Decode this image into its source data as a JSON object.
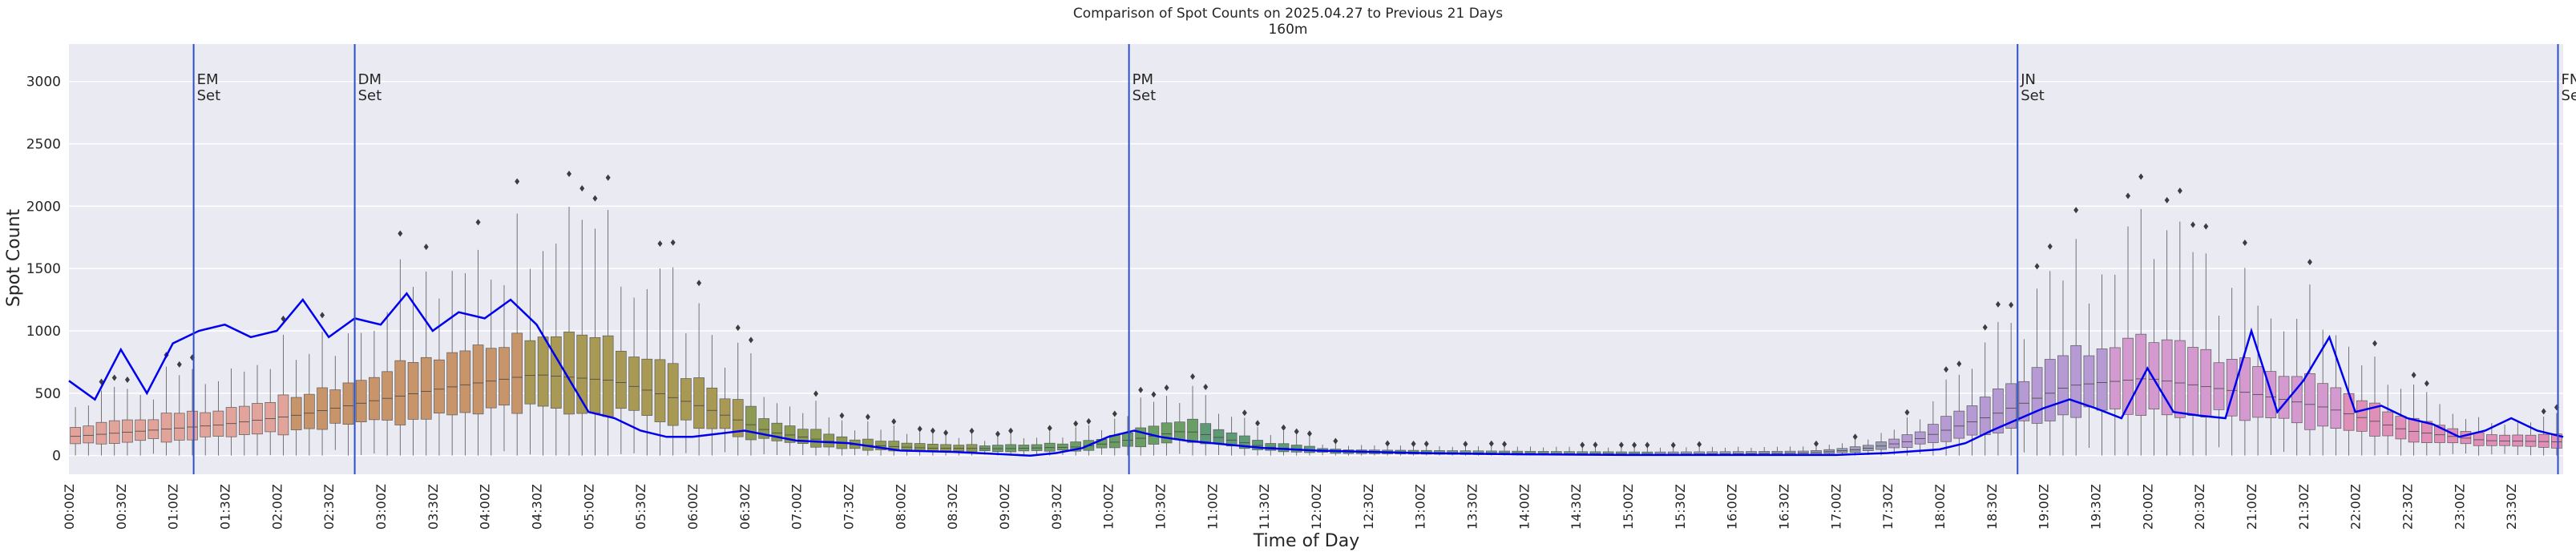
{
  "chart_data": {
    "type": "box",
    "title": "Comparison of Spot Counts on 2025.04.27 to Previous 21 Days",
    "subtitle": "160m",
    "xlabel": "Time of Day",
    "ylabel": "Spot Count",
    "ylim": [
      -150,
      3300
    ],
    "yticks": [
      0,
      500,
      1000,
      1500,
      2000,
      2500,
      3000
    ],
    "grid": true,
    "xtick_labels": [
      "00:00Z",
      "00:30Z",
      "01:00Z",
      "01:30Z",
      "02:00Z",
      "02:30Z",
      "03:00Z",
      "03:30Z",
      "04:00Z",
      "04:30Z",
      "05:00Z",
      "05:30Z",
      "06:00Z",
      "06:30Z",
      "07:00Z",
      "07:30Z",
      "08:00Z",
      "08:30Z",
      "09:00Z",
      "09:30Z",
      "10:00Z",
      "10:30Z",
      "11:00Z",
      "11:30Z",
      "12:00Z",
      "12:30Z",
      "13:00Z",
      "13:30Z",
      "14:00Z",
      "14:30Z",
      "15:00Z",
      "15:30Z",
      "16:00Z",
      "16:30Z",
      "17:00Z",
      "17:30Z",
      "18:00Z",
      "18:30Z",
      "19:00Z",
      "19:30Z",
      "20:00Z",
      "20:30Z",
      "21:00Z",
      "21:30Z",
      "22:00Z",
      "22:30Z",
      "23:00Z",
      "23:30Z"
    ],
    "box_medians_hourly": [
      150,
      200,
      250,
      330,
      450,
      560,
      650,
      600,
      420,
      190,
      90,
      60,
      55,
      70,
      130,
      200,
      70,
      30,
      25,
      20,
      15,
      12,
      15,
      20,
      50,
      120,
      320,
      560,
      620,
      500,
      380,
      200,
      120,
      110
    ],
    "box_median_hours": [
      0,
      0.75,
      1.5,
      2.25,
      3,
      3.75,
      4.5,
      5.25,
      6,
      6.75,
      7.5,
      8.25,
      9,
      9.75,
      10.25,
      10.75,
      11.5,
      12.25,
      13,
      13.75,
      14.5,
      15.25,
      16,
      16.75,
      17.25,
      17.75,
      18.5,
      19.25,
      20,
      21,
      21.75,
      22.5,
      23.25,
      24
    ],
    "current_day_series": {
      "color": "#0000ee",
      "hours": [
        0,
        0.25,
        0.5,
        0.75,
        1,
        1.25,
        1.5,
        1.75,
        2,
        2.25,
        2.5,
        2.75,
        3,
        3.25,
        3.5,
        3.75,
        4,
        4.25,
        4.5,
        4.75,
        5,
        5.25,
        5.5,
        5.75,
        6,
        6.5,
        7,
        7.5,
        8,
        8.5,
        9,
        9.25,
        9.5,
        9.75,
        10,
        10.25,
        10.5,
        10.75,
        11,
        11.5,
        12,
        12.5,
        13,
        14,
        15,
        16,
        17,
        17.5,
        18,
        18.25,
        18.5,
        19,
        19.25,
        19.5,
        19.75,
        20,
        20.25,
        20.5,
        20.75,
        21,
        21.25,
        21.5,
        21.75,
        22,
        22.25,
        22.5,
        22.75,
        23,
        23.25,
        23.5,
        23.75,
        24
      ],
      "values": [
        600,
        450,
        850,
        500,
        900,
        1000,
        1050,
        950,
        1000,
        1250,
        950,
        1100,
        1050,
        1300,
        1000,
        1150,
        1100,
        1250,
        1050,
        700,
        350,
        300,
        200,
        150,
        150,
        200,
        120,
        100,
        40,
        30,
        10,
        0,
        20,
        60,
        150,
        200,
        150,
        120,
        100,
        60,
        40,
        30,
        20,
        10,
        5,
        5,
        5,
        20,
        50,
        100,
        200,
        380,
        450,
        380,
        300,
        700,
        350,
        320,
        300,
        1000,
        350,
        600,
        950,
        350,
        400,
        300,
        250,
        150,
        200,
        300,
        200,
        150
      ]
    },
    "set_markers": [
      {
        "label": "EM\nSet",
        "hour": 1.2
      },
      {
        "label": "DM\nSet",
        "hour": 2.75
      },
      {
        "label": "PM\nSet",
        "hour": 10.2
      },
      {
        "label": "JN\nSet",
        "hour": 18.75
      },
      {
        "label": "FN\nSet",
        "hour": 23.95
      }
    ]
  },
  "colors": {
    "plot_bg": "#eaeaf2",
    "grid": "#ffffff",
    "line": "#0000ee",
    "marker": "#2f4fc6",
    "box_palette": [
      "#e2a39a",
      "#c8946a",
      "#a89a55",
      "#8c9a52",
      "#6b9e64",
      "#5e9a76",
      "#6f9c8a",
      "#9a9db8",
      "#b59ad3",
      "#d49ad0",
      "#e08fb9"
    ]
  }
}
